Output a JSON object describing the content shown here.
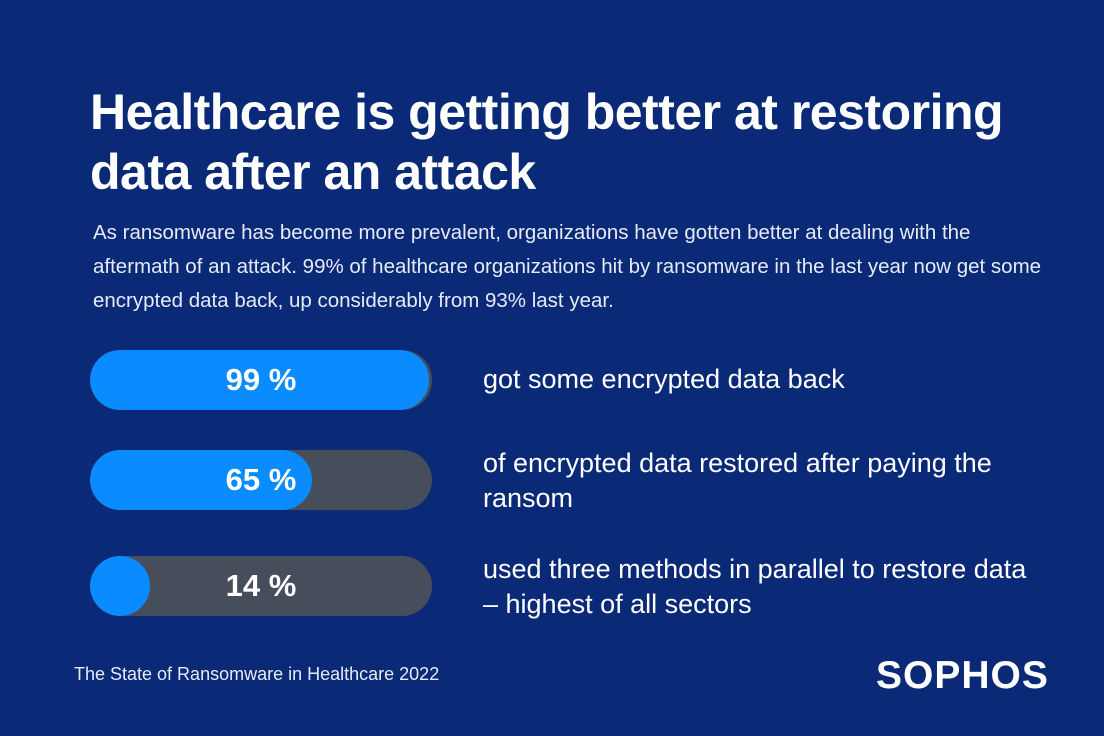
{
  "headline": "Healthcare is getting better at restoring data after an attack",
  "intro": "As ransomware has become more prevalent, organizations have gotten better at dealing with the aftermath of an attack. 99% of healthcare organizations hit by ransomware in the last year now get some encrypted data back, up considerably from 93% last year.",
  "stats": [
    {
      "value_label": "99 %",
      "fraction": 0.99,
      "description": "got some encrypted data back"
    },
    {
      "value_label": "65 %",
      "fraction": 0.65,
      "description": "of encrypted data restored after paying the ransom"
    },
    {
      "value_label": "14 %",
      "fraction": 0.14,
      "description": "used three methods in parallel to restore data – highest of all sectors"
    }
  ],
  "footer": {
    "source": "The State of Ransomware in Healthcare 2022",
    "brand": "SOPHOS"
  },
  "colors": {
    "background": "#0a2a78",
    "bar_track": "#464e5b",
    "bar_fill": "#0a8bff"
  }
}
